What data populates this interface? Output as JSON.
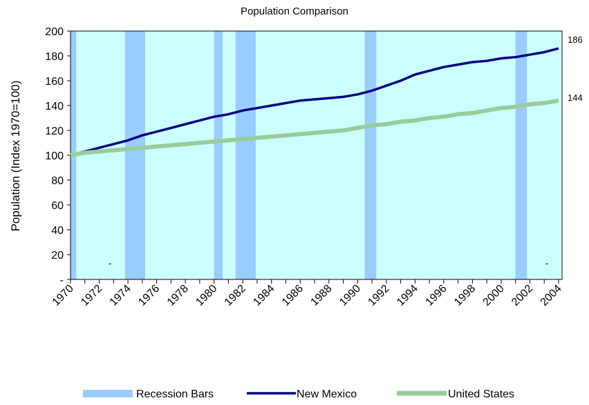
{
  "chart_data": {
    "type": "line",
    "title": "Population Comparison",
    "ylabel": "Population (Index 1970=100)",
    "xlabel": "",
    "ylim": [
      0,
      200
    ],
    "xlim": [
      1970,
      2004
    ],
    "grid": false,
    "legend_position": "bottom",
    "plot_background": "#ccffff",
    "x_ticks": [
      "1970",
      "1972",
      "1974",
      "1976",
      "1978",
      "1980",
      "1982",
      "1984",
      "1986",
      "1988",
      "1990",
      "1992",
      "1994",
      "1996",
      "1998",
      "2000",
      "2002",
      "2004"
    ],
    "y_ticks": [
      "-",
      "20",
      "40",
      "60",
      "80",
      "100",
      "120",
      "140",
      "160",
      "180",
      "200"
    ],
    "recession_bars": {
      "name": "Recession Bars",
      "color": "#99ccff",
      "periods": [
        [
          1970,
          1970.4
        ],
        [
          1973.8,
          1975.2
        ],
        [
          1980,
          1980.6
        ],
        [
          1981.5,
          1982.9
        ],
        [
          1990.5,
          1991.3
        ],
        [
          2001,
          2001.8
        ]
      ],
      "bottom_markers": [
        "-",
        "-"
      ]
    },
    "series": [
      {
        "name": "New Mexico",
        "color": "#000080",
        "x": [
          1970,
          1971,
          1972,
          1973,
          1974,
          1975,
          1976,
          1977,
          1978,
          1979,
          1980,
          1981,
          1982,
          1983,
          1984,
          1985,
          1986,
          1987,
          1988,
          1989,
          1990,
          1991,
          1992,
          1993,
          1994,
          1995,
          1996,
          1997,
          1998,
          1999,
          2000,
          2001,
          2002,
          2003,
          2004
        ],
        "values": [
          100,
          103,
          106,
          109,
          112,
          116,
          119,
          122,
          125,
          128,
          131,
          133,
          136,
          138,
          140,
          142,
          144,
          145,
          146,
          147,
          149,
          152,
          156,
          160,
          165,
          168,
          171,
          173,
          175,
          176,
          178,
          179,
          181,
          183,
          186
        ]
      },
      {
        "name": "United States",
        "color": "#99cc99",
        "x": [
          1970,
          1971,
          1972,
          1973,
          1974,
          1975,
          1976,
          1977,
          1978,
          1979,
          1980,
          1981,
          1982,
          1983,
          1984,
          1985,
          1986,
          1987,
          1988,
          1989,
          1990,
          1991,
          1992,
          1993,
          1994,
          1995,
          1996,
          1997,
          1998,
          1999,
          2000,
          2001,
          2002,
          2003,
          2004
        ],
        "values": [
          100,
          102,
          103,
          104,
          105,
          106,
          107,
          108,
          109,
          110,
          111,
          112,
          113,
          114,
          115,
          116,
          117,
          118,
          119,
          120,
          122,
          124,
          125,
          127,
          128,
          130,
          131,
          133,
          134,
          136,
          138,
          139,
          141,
          142,
          144
        ]
      }
    ],
    "end_labels": [
      "186",
      "144"
    ]
  }
}
